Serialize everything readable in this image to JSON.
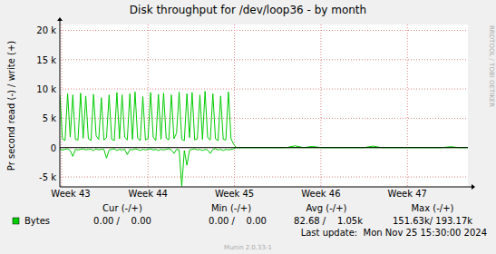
{
  "chart_data": {
    "type": "line",
    "title": "Disk throughput for /dev/loop36 - by month",
    "y_label": "Pr second read (-) / write (+)",
    "x": [
      42.98,
      43.01,
      43.04,
      43.07,
      43.1,
      43.13,
      43.16,
      43.19,
      43.22,
      43.25,
      43.28,
      43.31,
      43.34,
      43.37,
      43.4,
      43.43,
      43.46,
      43.49,
      43.52,
      43.55,
      43.58,
      43.61,
      43.64,
      43.67,
      43.7,
      43.73,
      43.76,
      43.79,
      43.82,
      43.85,
      43.88,
      43.91,
      43.94,
      43.97,
      44.0,
      44.03,
      44.06,
      44.09,
      44.12,
      44.15,
      44.18,
      44.21,
      44.24,
      44.27,
      44.3,
      44.33,
      44.36,
      44.39,
      44.42,
      44.45,
      44.48,
      44.51,
      44.54,
      44.57,
      44.6,
      44.63,
      44.66,
      44.69,
      44.72,
      44.75,
      44.78,
      44.81,
      44.84,
      44.87,
      44.9,
      44.93,
      44.96,
      44.99,
      45.02,
      45.1,
      45.2,
      45.3,
      45.4,
      45.5,
      45.6,
      45.7,
      45.8,
      45.9,
      46.0,
      46.1,
      46.2,
      46.3,
      46.4,
      46.5,
      46.6,
      46.7,
      46.8,
      46.9,
      47.0,
      47.1,
      47.2,
      47.3,
      47.4,
      47.5,
      47.6,
      47.7
    ],
    "series": [
      {
        "name": "Bytes",
        "color": "#00cc00",
        "values": [
          9000,
          1500,
          1200,
          9200,
          1800,
          9000,
          1400,
          1300,
          9300,
          1600,
          8800,
          1500,
          1200,
          9100,
          2000,
          1400,
          8500,
          1300,
          1700,
          9000,
          1400,
          1200,
          9400,
          1500,
          9000,
          1800,
          1300,
          9200,
          1400,
          9500,
          1600,
          1200,
          8700,
          1300,
          1500,
          9400,
          1800,
          1200,
          9100,
          1400,
          9300,
          1600,
          1300,
          9000,
          1500,
          2500,
          9500,
          1400,
          1200,
          9200,
          1700,
          9400,
          1300,
          1500,
          9000,
          1400,
          9600,
          1700,
          1300,
          9200,
          1500,
          1200,
          8800,
          1400,
          1300,
          9500,
          1500,
          600,
          0,
          0,
          0,
          0,
          0,
          0,
          0,
          300,
          0,
          200,
          0,
          0,
          0,
          0,
          0,
          0,
          250,
          0,
          0,
          0,
          0,
          0,
          0,
          0,
          0,
          150,
          0,
          0
        ]
      },
      {
        "color": "#00cc00",
        "values": [
          -300,
          -400,
          -300,
          -200,
          -500,
          -1500,
          -300,
          -400,
          -300,
          -200,
          -400,
          -300,
          -300,
          -500,
          -200,
          -400,
          -300,
          -300,
          -1800,
          -400,
          -300,
          -200,
          -500,
          -300,
          -400,
          -300,
          -1200,
          -300,
          -400,
          -200,
          -300,
          -500,
          -300,
          -400,
          -300,
          -200,
          -400,
          -300,
          -500,
          -300,
          -400,
          -300,
          -200,
          -400,
          -1000,
          -300,
          -400,
          -6600,
          -500,
          -3000,
          -400,
          -300,
          -200,
          -400,
          -300,
          -500,
          -300,
          -400,
          -1000,
          -300,
          -200,
          -400,
          -300,
          -500,
          -300,
          -400,
          -300,
          -200,
          0,
          0,
          0,
          0,
          0,
          0,
          0,
          0,
          0,
          0,
          0,
          0,
          0,
          0,
          0,
          0,
          0,
          0,
          0,
          0,
          0,
          0,
          0,
          0,
          0,
          0,
          0,
          0
        ]
      }
    ],
    "xlim": [
      42.98,
      47.7
    ],
    "xticks": [
      {
        "value": 43,
        "label": "Week 43"
      },
      {
        "value": 44,
        "label": "Week 44"
      },
      {
        "value": 45,
        "label": "Week 45"
      },
      {
        "value": 46,
        "label": "Week 46"
      },
      {
        "value": 47,
        "label": "Week 47"
      }
    ],
    "ylim": [
      -6700,
      21000
    ],
    "yticks": [
      {
        "value": -5000,
        "label": "-5 k"
      },
      0,
      {
        "value": 5000,
        "label": "5 k"
      },
      {
        "value": 10000,
        "label": "10 k"
      },
      {
        "value": 15000,
        "label": "15 k"
      },
      {
        "value": 20000,
        "label": "20 k"
      }
    ],
    "grid": true,
    "legend_stats": {
      "headers": [
        "Cur (-/+)",
        "Min (-/+)",
        "Avg (-/+)",
        "Max (-/+)"
      ],
      "values": [
        "0.00 /    0.00",
        "0.00 /    0.00",
        "82.68 /    1.05k",
        "151.63k/ 193.17k"
      ]
    },
    "last_update": "Last update:  Mon Nov 25 15:30:00 2024",
    "footer": "Munin 2.0.33-1",
    "watermark": "RRDTOOL / TOBI OETIKER"
  }
}
